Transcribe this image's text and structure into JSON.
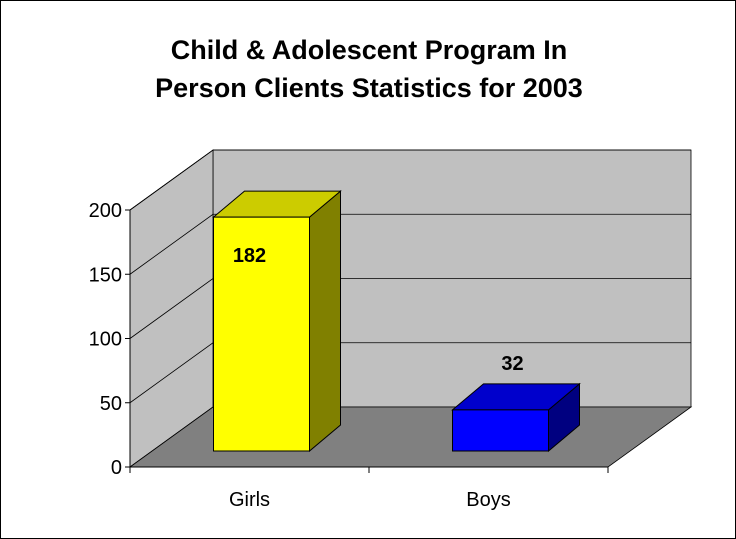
{
  "chart_data": {
    "type": "bar",
    "title_lines": [
      "Child & Adolescent Program In",
      "Person Clients Statistics for 2003"
    ],
    "categories": [
      "Girls",
      "Boys"
    ],
    "values": [
      182,
      32
    ],
    "data_labels": [
      "182",
      "32"
    ],
    "ylim": [
      0,
      200
    ],
    "yticks": [
      0,
      50,
      100,
      150,
      200
    ],
    "ytick_labels": [
      "0",
      "50",
      "100",
      "150",
      "200"
    ],
    "grid": true,
    "legend": "none",
    "style": "3d-column",
    "colors": {
      "bars": [
        "#ffff00",
        "#0000ff"
      ],
      "bar_sides": [
        "#808000",
        "#000080"
      ],
      "bar_tops": [
        "#cccc00",
        "#0000cc"
      ],
      "back_wall": "#c0c0c0",
      "side_wall": "#c0c0c0",
      "floor": "#808080",
      "gridline": "#000000"
    }
  }
}
